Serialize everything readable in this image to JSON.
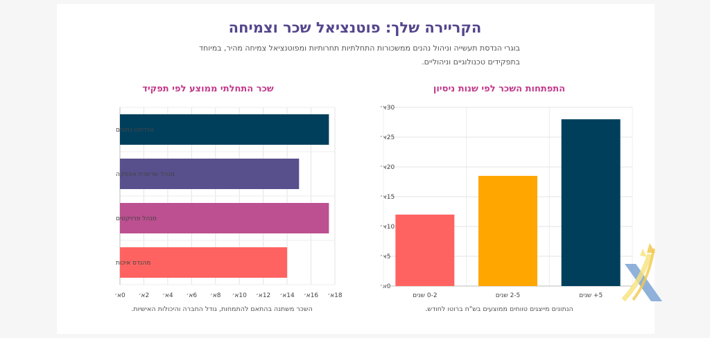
{
  "header": {
    "title": "הקריירה שלך: פוטנציאל שכר וצמיחה",
    "subtitle": "בוגרי הנדסת תעשייה וניהול נהנים ממשכורות התחלתיות תחרותיות ומפוטנציאל צמיחה מהיר, במיוחד בתפקידים טכנולוגיים וניהוליים."
  },
  "colors": {
    "title": "#54468c",
    "chart_title": "#c2398a",
    "coral": "#ff6361",
    "amber": "#ffa600",
    "navy": "#003f5c",
    "purple": "#58508d",
    "magenta": "#bc5090"
  },
  "chart_data": [
    {
      "type": "bar",
      "title": "התפתחות השכר לפי שנות ניסיון",
      "categories": [
        "0-2 שנים",
        "2-5 שנים",
        "5+ שנים"
      ],
      "values": [
        12,
        18.5,
        28
      ],
      "bar_colors": [
        "#ff6361",
        "#ffa600",
        "#003f5c"
      ],
      "y_ticks": [
        "0א׳",
        "5א׳",
        "10א׳",
        "15א׳",
        "20א׳",
        "25א׳",
        "30א׳"
      ],
      "ylim": [
        0,
        30
      ],
      "grid": true,
      "footnote": "הנתונים מייצגים טווחים ממוצעים בש\"ח ברוטו לחודש."
    },
    {
      "type": "bar",
      "orientation": "horizontal",
      "title": "שכר התחלתי ממוצע לפי תפקיד",
      "categories": [
        "אנליסט נתונים",
        "מנהל שרשרת אספקה",
        "מנהל פרויקטים",
        "מהנדס איכות"
      ],
      "values": [
        17.5,
        15,
        17.5,
        14
      ],
      "bar_colors": [
        "#003f5c",
        "#58508d",
        "#bc5090",
        "#ff6361"
      ],
      "x_ticks": [
        "0א׳",
        "2א׳",
        "4א׳",
        "6א׳",
        "8א׳",
        "10א׳",
        "12א׳",
        "14א׳",
        "16א׳",
        "18א׳"
      ],
      "xlim": [
        0,
        18
      ],
      "grid": true,
      "footnote": "השכר משתנה בהתאם להתמחות, גודל החברה והיכולות האישיות."
    }
  ]
}
